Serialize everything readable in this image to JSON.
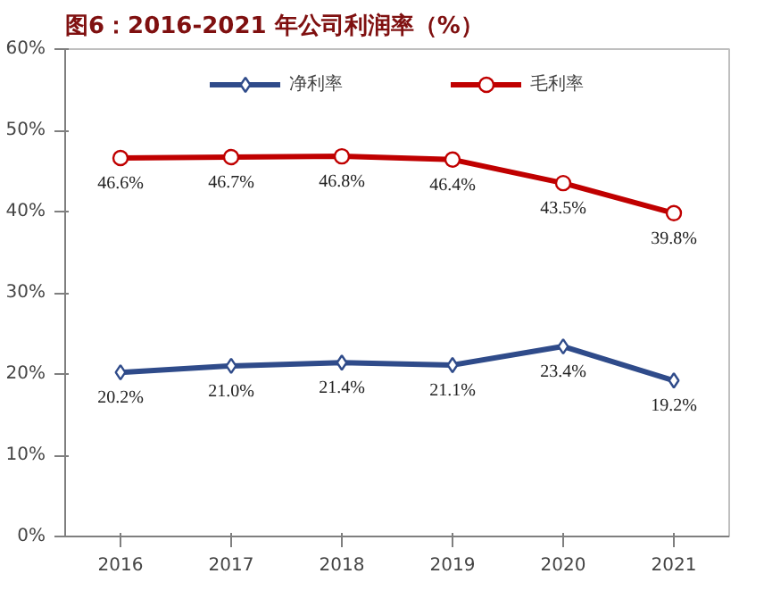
{
  "chart_data": {
    "type": "line",
    "title": "图6：2016-2021 年公司利润率（%）",
    "categories": [
      "2016",
      "2017",
      "2018",
      "2019",
      "2020",
      "2021"
    ],
    "series": [
      {
        "name": "净利率",
        "color": "#2f4b8a",
        "marker": "diamond",
        "values": [
          20.2,
          21.0,
          21.4,
          21.1,
          23.4,
          19.2
        ],
        "value_labels": [
          "20.2%",
          "21.0%",
          "21.4%",
          "21.1%",
          "23.4%",
          "19.2%"
        ]
      },
      {
        "name": "毛利率",
        "color": "#c00000",
        "marker": "circle",
        "values": [
          46.6,
          46.7,
          46.8,
          46.4,
          43.5,
          39.8
        ],
        "value_labels": [
          "46.6%",
          "46.7%",
          "46.8%",
          "46.4%",
          "43.5%",
          "39.8%"
        ]
      }
    ],
    "ylim": [
      0,
      60
    ],
    "yticks": [
      {
        "value": 0,
        "label": "0%"
      },
      {
        "value": 10,
        "label": "10%"
      },
      {
        "value": 20,
        "label": "20%"
      },
      {
        "value": 30,
        "label": "30%"
      },
      {
        "value": 40,
        "label": "40%"
      },
      {
        "value": 50,
        "label": "50%"
      },
      {
        "value": 60,
        "label": "60%"
      }
    ],
    "grid": false,
    "legend": "top",
    "line_style": "solid"
  }
}
